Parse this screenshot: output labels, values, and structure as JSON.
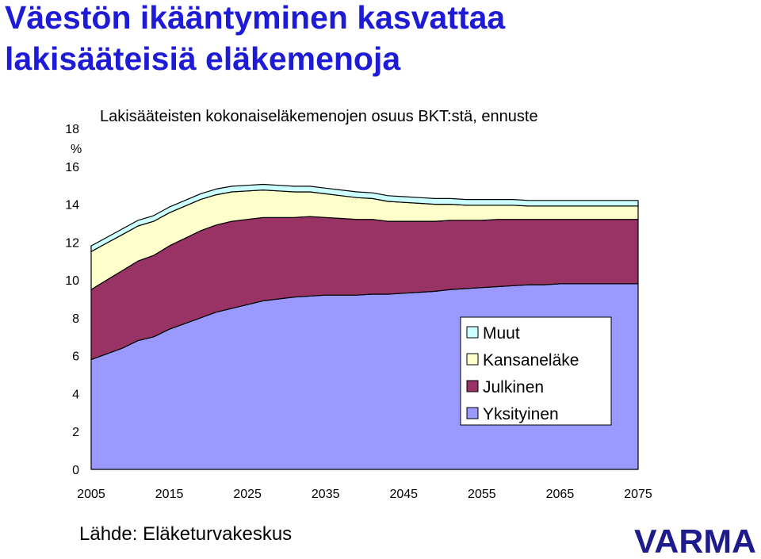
{
  "slide": {
    "title_line1": "Väestön ikääntyminen kasvattaa",
    "title_line2": "lakisääteisiä eläkemenoja",
    "source": "Lähde: Eläketurvakeskus",
    "logo_text": "VARMA"
  },
  "colors": {
    "title": "#1e1bd6",
    "logo": "#1e1c8c",
    "muut": "#ccffff",
    "kansanelake": "#ffffcc",
    "julkinen": "#993366",
    "yksityinen": "#9999ff"
  },
  "chart_data": {
    "type": "area",
    "stacked": true,
    "title": "Lakisääteisten kokonaiseläkemenojen osuus BKT:stä, ennuste",
    "ylabel": "%",
    "xlabel": "",
    "ylim": [
      0,
      18
    ],
    "xlim": [
      2005,
      2075
    ],
    "yticks": [
      "0",
      "2",
      "4",
      "6",
      "8",
      "10",
      "12",
      "14",
      "16",
      "18"
    ],
    "xticks": [
      "2005",
      "2015",
      "2025",
      "2035",
      "2045",
      "2055",
      "2065",
      "2075"
    ],
    "legend_position": "lower-right",
    "x": [
      2005,
      2007,
      2009,
      2011,
      2013,
      2015,
      2017,
      2019,
      2021,
      2023,
      2025,
      2027,
      2029,
      2031,
      2033,
      2035,
      2037,
      2039,
      2041,
      2043,
      2045,
      2047,
      2049,
      2051,
      2053,
      2055,
      2057,
      2059,
      2061,
      2063,
      2065,
      2067,
      2069,
      2071,
      2073,
      2075
    ],
    "series": [
      {
        "name": "Yksityinen",
        "color_key": "yksityinen",
        "values": [
          5.8,
          6.1,
          6.4,
          6.8,
          7.0,
          7.4,
          7.7,
          8.0,
          8.3,
          8.5,
          8.7,
          8.9,
          9.0,
          9.1,
          9.15,
          9.2,
          9.2,
          9.2,
          9.25,
          9.25,
          9.3,
          9.35,
          9.4,
          9.5,
          9.55,
          9.6,
          9.65,
          9.7,
          9.75,
          9.75,
          9.8,
          9.8,
          9.8,
          9.8,
          9.8,
          9.8
        ]
      },
      {
        "name": "Julkinen",
        "color_key": "julkinen",
        "values": [
          3.7,
          3.9,
          4.1,
          4.2,
          4.3,
          4.4,
          4.5,
          4.6,
          4.6,
          4.6,
          4.5,
          4.4,
          4.3,
          4.2,
          4.2,
          4.1,
          4.05,
          4.0,
          3.95,
          3.85,
          3.8,
          3.75,
          3.7,
          3.65,
          3.6,
          3.55,
          3.55,
          3.5,
          3.45,
          3.45,
          3.4,
          3.4,
          3.4,
          3.4,
          3.4,
          3.4
        ]
      },
      {
        "name": "Kansaneläke",
        "color_key": "kansanelake",
        "values": [
          2.0,
          1.95,
          1.9,
          1.85,
          1.8,
          1.75,
          1.7,
          1.65,
          1.6,
          1.55,
          1.5,
          1.45,
          1.4,
          1.35,
          1.3,
          1.25,
          1.2,
          1.15,
          1.1,
          1.05,
          1.0,
          0.95,
          0.9,
          0.85,
          0.8,
          0.8,
          0.75,
          0.75,
          0.7,
          0.7,
          0.7,
          0.7,
          0.7,
          0.7,
          0.7,
          0.7
        ]
      },
      {
        "name": "Muut",
        "color_key": "muut",
        "values": [
          0.3,
          0.3,
          0.3,
          0.3,
          0.3,
          0.3,
          0.3,
          0.3,
          0.3,
          0.3,
          0.3,
          0.3,
          0.3,
          0.3,
          0.3,
          0.3,
          0.3,
          0.3,
          0.3,
          0.3,
          0.3,
          0.3,
          0.3,
          0.3,
          0.3,
          0.3,
          0.3,
          0.3,
          0.3,
          0.3,
          0.3,
          0.3,
          0.3,
          0.3,
          0.3,
          0.3
        ]
      }
    ],
    "legend_order": [
      "Muut",
      "Kansaneläke",
      "Julkinen",
      "Yksityinen"
    ]
  }
}
